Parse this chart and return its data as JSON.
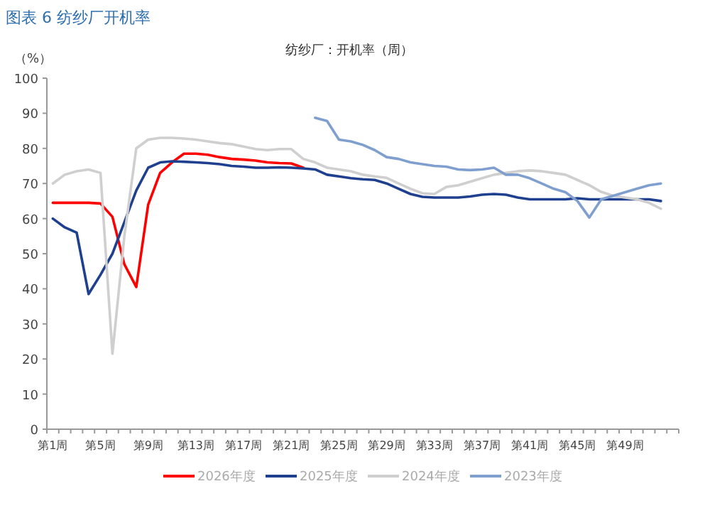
{
  "chart_data": {
    "type": "line",
    "title": "图表 6 纺纱厂开机率",
    "subtitle": "纺纱厂：开机率（周）",
    "ylabel": "（%）",
    "categories": [
      "第1周",
      null,
      null,
      null,
      "第5周",
      null,
      null,
      null,
      "第9周",
      null,
      null,
      null,
      "第13周",
      null,
      null,
      null,
      "第17周",
      null,
      null,
      null,
      "第21周",
      null,
      null,
      null,
      "第25周",
      null,
      null,
      null,
      "第29周",
      null,
      null,
      null,
      "第33周",
      null,
      null,
      null,
      "第37周",
      null,
      null,
      null,
      "第41周",
      null,
      null,
      null,
      "第45周",
      null,
      null,
      null,
      "第49周",
      null,
      null,
      null,
      null
    ],
    "ylim": [
      0,
      100
    ],
    "yticks": [
      0,
      10,
      20,
      30,
      40,
      50,
      60,
      70,
      80,
      90,
      100
    ],
    "grid": false,
    "legend": "bottom",
    "marker": "none",
    "line_style": "solid",
    "series": [
      {
        "name": "2026年度",
        "color": "#ff0000",
        "values": [
          64.5,
          64.5,
          64.5,
          64.5,
          64.3,
          60.5,
          47,
          40.5,
          64,
          73,
          76,
          78.5,
          78.5,
          78.2,
          77.5,
          77,
          76.8,
          76.5,
          76,
          75.8,
          75.7,
          74.5,
          null,
          null,
          null,
          null,
          null,
          null,
          null,
          null,
          null,
          null,
          null,
          null,
          null,
          null,
          null,
          null,
          null,
          null,
          null,
          null,
          null,
          null,
          null,
          null,
          null,
          null,
          null,
          null,
          null,
          null,
          null
        ]
      },
      {
        "name": "2025年度",
        "color": "#1f3f8f",
        "values": [
          60,
          57.5,
          56,
          38.5,
          44,
          50,
          59,
          68,
          74.5,
          76,
          76.3,
          76.2,
          76,
          75.8,
          75.5,
          75,
          74.8,
          74.5,
          74.5,
          74.6,
          74.5,
          74.3,
          74,
          72.5,
          72,
          71.5,
          71.2,
          71,
          70,
          68.5,
          67,
          66.2,
          66,
          66,
          66,
          66.3,
          66.8,
          67,
          66.8,
          66,
          65.5,
          65.5,
          65.5,
          65.5,
          65.8,
          65.5,
          65.5,
          65.5,
          65.5,
          65.5,
          65.5,
          65,
          null
        ]
      },
      {
        "name": "2024年度",
        "color": "#cfcfcf",
        "values": [
          70,
          72.5,
          73.5,
          74,
          73,
          21.5,
          55,
          80,
          82.5,
          83,
          83,
          82.8,
          82.5,
          82,
          81.5,
          81.2,
          80.5,
          79.8,
          79.5,
          79.8,
          79.8,
          77,
          76,
          74.5,
          74,
          73.5,
          72.5,
          72,
          71.6,
          70,
          68.5,
          67.2,
          67,
          69,
          69.5,
          70.5,
          71.5,
          72.5,
          73,
          73.5,
          73.7,
          73.5,
          73,
          72.5,
          71,
          69.5,
          67.6,
          66.5,
          66,
          65.5,
          64.5,
          62.8,
          null
        ]
      },
      {
        "name": "2023年度",
        "color": "#7f9fcf",
        "values": [
          null,
          null,
          null,
          null,
          null,
          null,
          null,
          null,
          null,
          null,
          null,
          null,
          null,
          null,
          null,
          null,
          null,
          null,
          null,
          null,
          null,
          null,
          88.7,
          87.8,
          82.5,
          82,
          81,
          79.5,
          77.5,
          77,
          76,
          75.5,
          75,
          74.8,
          74,
          73.8,
          74,
          74.5,
          72.5,
          72.5,
          71.5,
          70,
          68.5,
          67.5,
          65,
          60.3,
          65.5,
          66.5,
          67.5,
          68.5,
          69.5,
          70,
          null
        ]
      }
    ]
  }
}
